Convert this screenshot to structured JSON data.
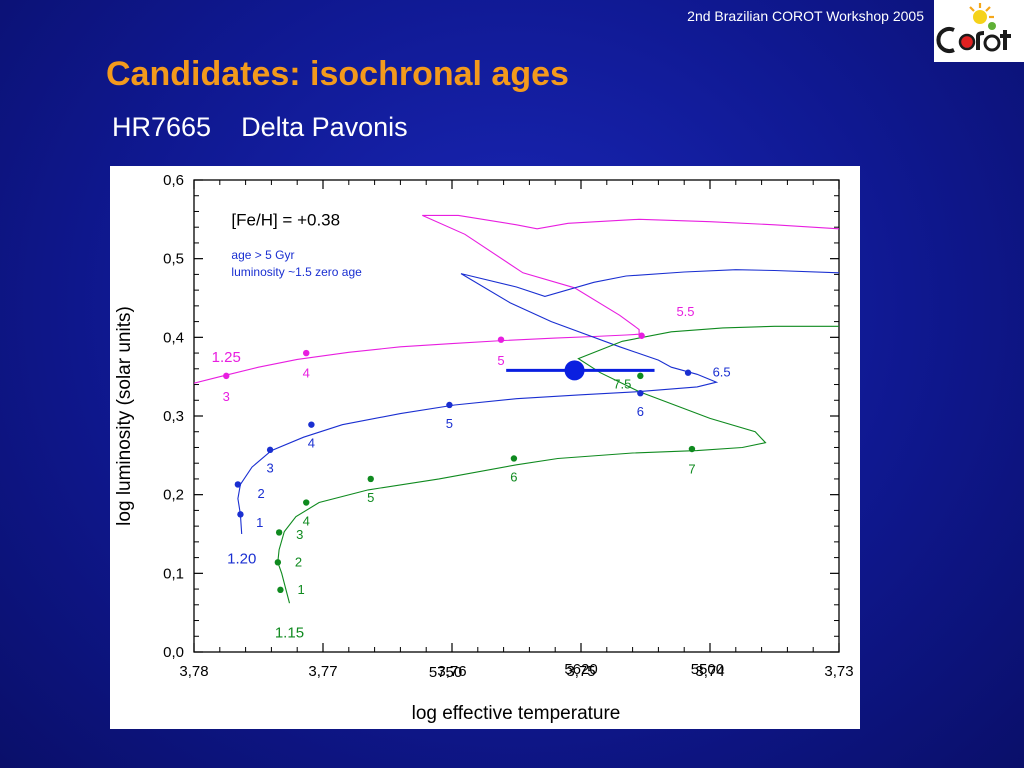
{
  "header": {
    "workshop": "2nd Brazilian COROT Workshop 2005",
    "logo_text": "COROT",
    "title": "Candidates: isochronal ages",
    "subtitle": "HR7665    Delta Pavonis"
  },
  "colors": {
    "title": "#f39a1c",
    "track_1_25": "#e81ee0",
    "track_1_20": "#1a2fd1",
    "track_1_15": "#0f8a1f",
    "isochrone": "#000000",
    "star": "#0a1fe0"
  },
  "chart_data": {
    "type": "scatter",
    "xlabel": "log effective temperature",
    "ylabel": "log luminosity (solar units)",
    "xlim": [
      3.78,
      3.73
    ],
    "ylim": [
      0.0,
      0.6
    ],
    "x_ticks": [
      "3,78",
      "3,77",
      "3,76",
      "3,75",
      "3,74",
      "3,73"
    ],
    "y_ticks": [
      "0,0",
      "0,1",
      "0,2",
      "0,3",
      "0,4",
      "0,5",
      "0,6"
    ],
    "annotations": [
      {
        "text": "[Fe/H] = +0.38",
        "x": 3.7771,
        "y": 0.55,
        "size": 17,
        "color": "#000000"
      },
      {
        "text": "age > 5 Gyr",
        "x": 3.7771,
        "y": 0.505,
        "size": 12,
        "color": "#1a2fd1"
      },
      {
        "text": "luminosity ~1.5 zero age",
        "x": 3.7771,
        "y": 0.483,
        "size": 12,
        "color": "#1a2fd1"
      },
      {
        "text": "5750",
        "x": 3.7605,
        "y": -0.025,
        "size": 15,
        "color": "#000000"
      },
      {
        "text": "5620",
        "x": 3.75,
        "y": -0.021,
        "size": 15,
        "color": "#000000"
      },
      {
        "text": "5500",
        "x": 3.7402,
        "y": -0.021,
        "size": 15,
        "color": "#000000"
      }
    ],
    "series": [
      {
        "mass": "1.25",
        "color": "#e81ee0",
        "label_pos": [
          3.7775,
          0.375
        ],
        "path": [
          [
            3.7804,
            0.34
          ],
          [
            3.778,
            0.35
          ],
          [
            3.775,
            0.362
          ],
          [
            3.772,
            0.372
          ],
          [
            3.768,
            0.381
          ],
          [
            3.764,
            0.388
          ],
          [
            3.76,
            0.392
          ],
          [
            3.756,
            0.396
          ],
          [
            3.752,
            0.399
          ],
          [
            3.749,
            0.401
          ],
          [
            3.7465,
            0.403
          ],
          [
            3.7455,
            0.404
          ],
          [
            3.7455,
            0.41
          ],
          [
            3.747,
            0.428
          ],
          [
            3.7505,
            0.463
          ],
          [
            3.7545,
            0.482
          ],
          [
            3.759,
            0.531
          ],
          [
            3.7623,
            0.555
          ],
          [
            3.7595,
            0.555
          ],
          [
            3.755,
            0.543
          ],
          [
            3.7534,
            0.538
          ],
          [
            3.751,
            0.545
          ],
          [
            3.7455,
            0.55
          ],
          [
            3.74,
            0.547
          ],
          [
            3.735,
            0.543
          ],
          [
            3.73,
            0.538
          ]
        ],
        "points": [
          {
            "label": "3",
            "x": 3.7775,
            "y": 0.351,
            "lx": 3.7775,
            "ly": 0.324
          },
          {
            "label": "4",
            "x": 3.7713,
            "y": 0.38,
            "lx": 3.7713,
            "ly": 0.354
          },
          {
            "label": "5",
            "x": 3.7562,
            "y": 0.397,
            "lx": 3.7562,
            "ly": 0.37
          },
          {
            "label": "5.5",
            "x": 3.7453,
            "y": 0.402,
            "lx": 3.7419,
            "ly": 0.432
          }
        ]
      },
      {
        "mass": "1.20",
        "color": "#1a2fd1",
        "label_pos": [
          3.7763,
          0.119
        ],
        "path": [
          [
            3.7763,
            0.15
          ],
          [
            3.7764,
            0.175
          ],
          [
            3.7766,
            0.195
          ],
          [
            3.7764,
            0.213
          ],
          [
            3.7755,
            0.235
          ],
          [
            3.774,
            0.256
          ],
          [
            3.7715,
            0.273
          ],
          [
            3.7685,
            0.289
          ],
          [
            3.764,
            0.303
          ],
          [
            3.7598,
            0.314
          ],
          [
            3.755,
            0.322
          ],
          [
            3.75,
            0.327
          ],
          [
            3.7455,
            0.331
          ],
          [
            3.741,
            0.337
          ],
          [
            3.7395,
            0.343
          ],
          [
            3.741,
            0.353
          ],
          [
            3.743,
            0.362
          ],
          [
            3.744,
            0.371
          ],
          [
            3.747,
            0.388
          ],
          [
            3.7523,
            0.42
          ],
          [
            3.7555,
            0.444
          ],
          [
            3.7593,
            0.481
          ],
          [
            3.755,
            0.464
          ],
          [
            3.7528,
            0.452
          ],
          [
            3.749,
            0.47
          ],
          [
            3.7465,
            0.478
          ],
          [
            3.742,
            0.483
          ],
          [
            3.738,
            0.486
          ],
          [
            3.735,
            0.485
          ],
          [
            3.73,
            0.482
          ]
        ],
        "points": [
          {
            "label": "1",
            "x": 3.7764,
            "y": 0.175,
            "lx": 3.7749,
            "ly": 0.164
          },
          {
            "label": "2",
            "x": 3.7766,
            "y": 0.213,
            "lx": 3.7748,
            "ly": 0.201
          },
          {
            "label": "3",
            "x": 3.7741,
            "y": 0.257,
            "lx": 3.7741,
            "ly": 0.233
          },
          {
            "label": "4",
            "x": 3.7709,
            "y": 0.289,
            "lx": 3.7709,
            "ly": 0.265
          },
          {
            "label": "5",
            "x": 3.7602,
            "y": 0.314,
            "lx": 3.7602,
            "ly": 0.29
          },
          {
            "label": "6",
            "x": 3.7454,
            "y": 0.329,
            "lx": 3.7454,
            "ly": 0.305
          },
          {
            "label": "6.5",
            "x": 3.7417,
            "y": 0.355,
            "lx": 3.7391,
            "ly": 0.355
          }
        ]
      },
      {
        "mass": "1.15",
        "color": "#0f8a1f",
        "label_pos": [
          3.7726,
          0.025
        ],
        "path": [
          [
            3.7726,
            0.062
          ],
          [
            3.7729,
            0.081
          ],
          [
            3.7732,
            0.1
          ],
          [
            3.7735,
            0.114
          ],
          [
            3.7734,
            0.13
          ],
          [
            3.773,
            0.153
          ],
          [
            3.7721,
            0.172
          ],
          [
            3.7703,
            0.19
          ],
          [
            3.7665,
            0.206
          ],
          [
            3.761,
            0.22
          ],
          [
            3.755,
            0.238
          ],
          [
            3.7518,
            0.246
          ],
          [
            3.746,
            0.253
          ],
          [
            3.741,
            0.256
          ],
          [
            3.7375,
            0.26
          ],
          [
            3.7357,
            0.266
          ],
          [
            3.7365,
            0.28
          ],
          [
            3.74,
            0.297
          ],
          [
            3.7455,
            0.331
          ],
          [
            3.7485,
            0.355
          ],
          [
            3.7502,
            0.373
          ],
          [
            3.7468,
            0.395
          ],
          [
            3.743,
            0.407
          ],
          [
            3.739,
            0.412
          ],
          [
            3.735,
            0.414
          ],
          [
            3.73,
            0.414
          ]
        ],
        "points": [
          {
            "label": "1",
            "x": 3.7733,
            "y": 0.079,
            "lx": 3.7717,
            "ly": 0.079
          },
          {
            "label": "2",
            "x": 3.7735,
            "y": 0.114,
            "lx": 3.7719,
            "ly": 0.114
          },
          {
            "label": "3",
            "x": 3.7734,
            "y": 0.152,
            "lx": 3.7718,
            "ly": 0.149
          },
          {
            "label": "4",
            "x": 3.7713,
            "y": 0.19,
            "lx": 3.7713,
            "ly": 0.166
          },
          {
            "label": "5",
            "x": 3.7663,
            "y": 0.22,
            "lx": 3.7663,
            "ly": 0.196
          },
          {
            "label": "6",
            "x": 3.7552,
            "y": 0.246,
            "lx": 3.7552,
            "ly": 0.222
          },
          {
            "label": "7",
            "x": 3.7414,
            "y": 0.258,
            "lx": 3.7414,
            "ly": 0.232
          },
          {
            "label": "7.5",
            "x": 3.7454,
            "y": 0.351,
            "lx": 3.7468,
            "ly": 0.34
          }
        ]
      }
    ],
    "star": {
      "name": "HR7665",
      "x": 3.7505,
      "y": 0.358,
      "xerr_low": 3.7558,
      "xerr_high": 3.7443
    }
  }
}
